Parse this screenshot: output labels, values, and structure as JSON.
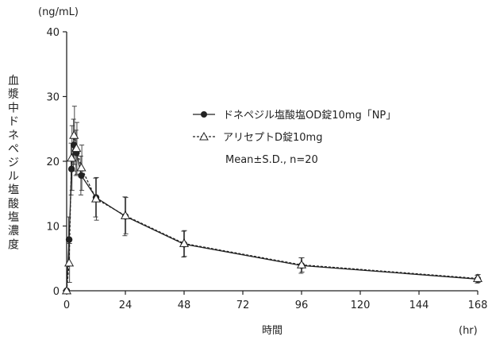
{
  "chart_data": {
    "type": "line",
    "title": "",
    "unit_label": "(ng/mL)",
    "ylabel": "血漿中ドネペジル塩酸塩濃度",
    "xlabel": "時間",
    "x_unit": "(hr)",
    "xlim": [
      0,
      168
    ],
    "ylim": [
      0,
      40
    ],
    "x_ticks": [
      0,
      24,
      48,
      72,
      96,
      120,
      144,
      168
    ],
    "y_ticks": [
      0,
      10,
      20,
      30,
      40
    ],
    "grid": false,
    "legend_position": "top-right",
    "legend_note": "Mean±S.D., n=20",
    "series": [
      {
        "name": "ドネペジル塩酸塩OD錠10mg「NP」",
        "marker": "filled-circle",
        "line": "solid",
        "color": "#222222",
        "x": [
          0,
          1,
          2,
          3,
          4,
          6,
          12,
          24,
          48,
          96,
          168
        ],
        "y": [
          0,
          7.9,
          18.8,
          22.5,
          21.3,
          17.8,
          14.4,
          11.5,
          7.2,
          3.9,
          1.8
        ],
        "sd": [
          0,
          3.5,
          4.0,
          4.0,
          3.5,
          3.0,
          3.0,
          3.0,
          2.0,
          1.2,
          0.6
        ]
      },
      {
        "name": "アリセプトD錠10mg",
        "marker": "open-triangle",
        "line": "dashed",
        "color": "#222222",
        "x": [
          0,
          1,
          2,
          3,
          4,
          6,
          12,
          24,
          48,
          96,
          168
        ],
        "y": [
          0,
          4.3,
          20.5,
          24.0,
          22.0,
          19.0,
          14.2,
          11.6,
          7.3,
          4.0,
          1.9
        ],
        "sd": [
          0,
          3.0,
          5.0,
          4.5,
          4.0,
          3.5,
          3.3,
          2.8,
          2.0,
          1.1,
          0.6
        ]
      }
    ]
  }
}
